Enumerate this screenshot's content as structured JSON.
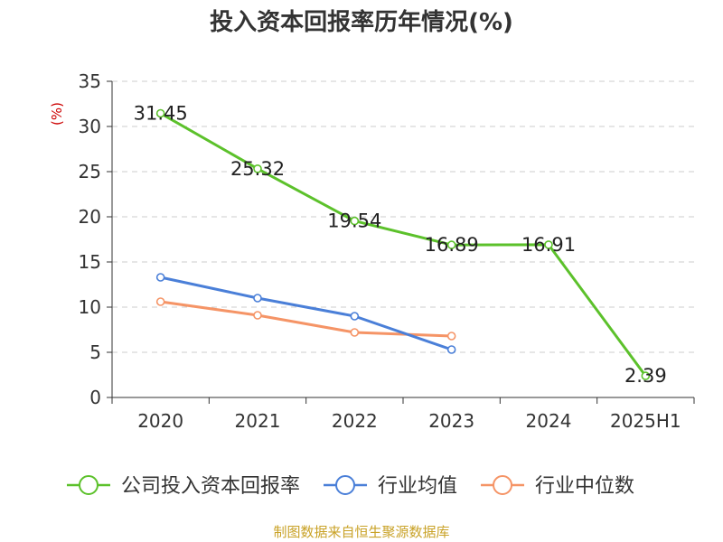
{
  "chart_data": {
    "type": "line",
    "title": "投入资本回报率历年情况(%)",
    "ylabel": "(%)",
    "xlabel": "",
    "categories": [
      "2020",
      "2021",
      "2022",
      "2023",
      "2024",
      "2025H1"
    ],
    "ylim": [
      0,
      35
    ],
    "yticks": [
      0,
      5,
      10,
      15,
      20,
      25,
      30,
      35
    ],
    "grid": true,
    "legend_position": "bottom",
    "series": [
      {
        "name": "公司投入资本回报率",
        "color": "#5cc12b",
        "values": [
          31.45,
          25.32,
          19.54,
          16.89,
          16.91,
          2.39
        ],
        "labels": [
          "31.45",
          "25.32",
          "19.54",
          "16.89",
          "16.91",
          "2.39"
        ]
      },
      {
        "name": "行业均值",
        "color": "#4a7fd8",
        "values": [
          13.3,
          11.0,
          9.0,
          5.3,
          null,
          null
        ]
      },
      {
        "name": "行业中位数",
        "color": "#f59466",
        "values": [
          10.6,
          9.1,
          7.2,
          6.8,
          null,
          null
        ]
      }
    ]
  },
  "source": "制图数据来自恒生聚源数据库"
}
